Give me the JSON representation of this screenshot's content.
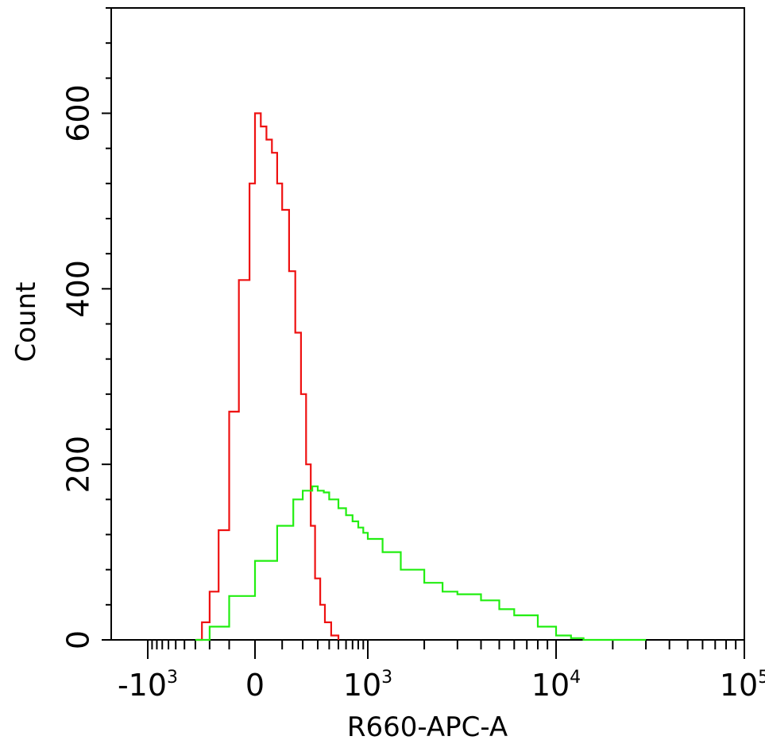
{
  "chart_data": {
    "type": "histogram",
    "xlabel": "R660-APC-A",
    "ylabel": "Count",
    "x_scale": "biexponential",
    "ylim": [
      0,
      720
    ],
    "x_ticks": [
      {
        "value": -1000,
        "base": "-10",
        "exp": "3"
      },
      {
        "value": 0,
        "base": "0",
        "exp": ""
      },
      {
        "value": 1000,
        "base": "10",
        "exp": "3"
      },
      {
        "value": 10000,
        "base": "10",
        "exp": "4"
      },
      {
        "value": 100000,
        "base": "10",
        "exp": "5"
      }
    ],
    "y_ticks": [
      0,
      200,
      400,
      600
    ],
    "grid": false,
    "series": [
      {
        "color": "#ee1111",
        "x": [
          -290,
          -250,
          -200,
          -150,
          -100,
          -60,
          -20,
          0,
          20,
          40,
          60,
          80,
          100,
          130,
          160,
          190,
          220,
          250,
          280,
          320,
          360,
          420,
          500
        ],
        "y": [
          0,
          20,
          55,
          125,
          260,
          410,
          520,
          600,
          585,
          570,
          555,
          520,
          490,
          420,
          350,
          280,
          200,
          130,
          70,
          40,
          20,
          5,
          0
        ]
      },
      {
        "color": "#22ee11",
        "x": [
          -300,
          -200,
          -100,
          0,
          80,
          150,
          200,
          260,
          300,
          350,
          400,
          500,
          600,
          700,
          800,
          900,
          1000,
          1200,
          1500,
          2000,
          2500,
          3000,
          4000,
          5000,
          6000,
          8000,
          10000,
          12000,
          14000,
          30000
        ],
        "y": [
          0,
          15,
          50,
          90,
          130,
          160,
          170,
          175,
          170,
          168,
          160,
          150,
          142,
          135,
          128,
          122,
          115,
          100,
          80,
          65,
          55,
          52,
          45,
          35,
          28,
          15,
          5,
          2,
          0,
          0
        ]
      }
    ]
  }
}
